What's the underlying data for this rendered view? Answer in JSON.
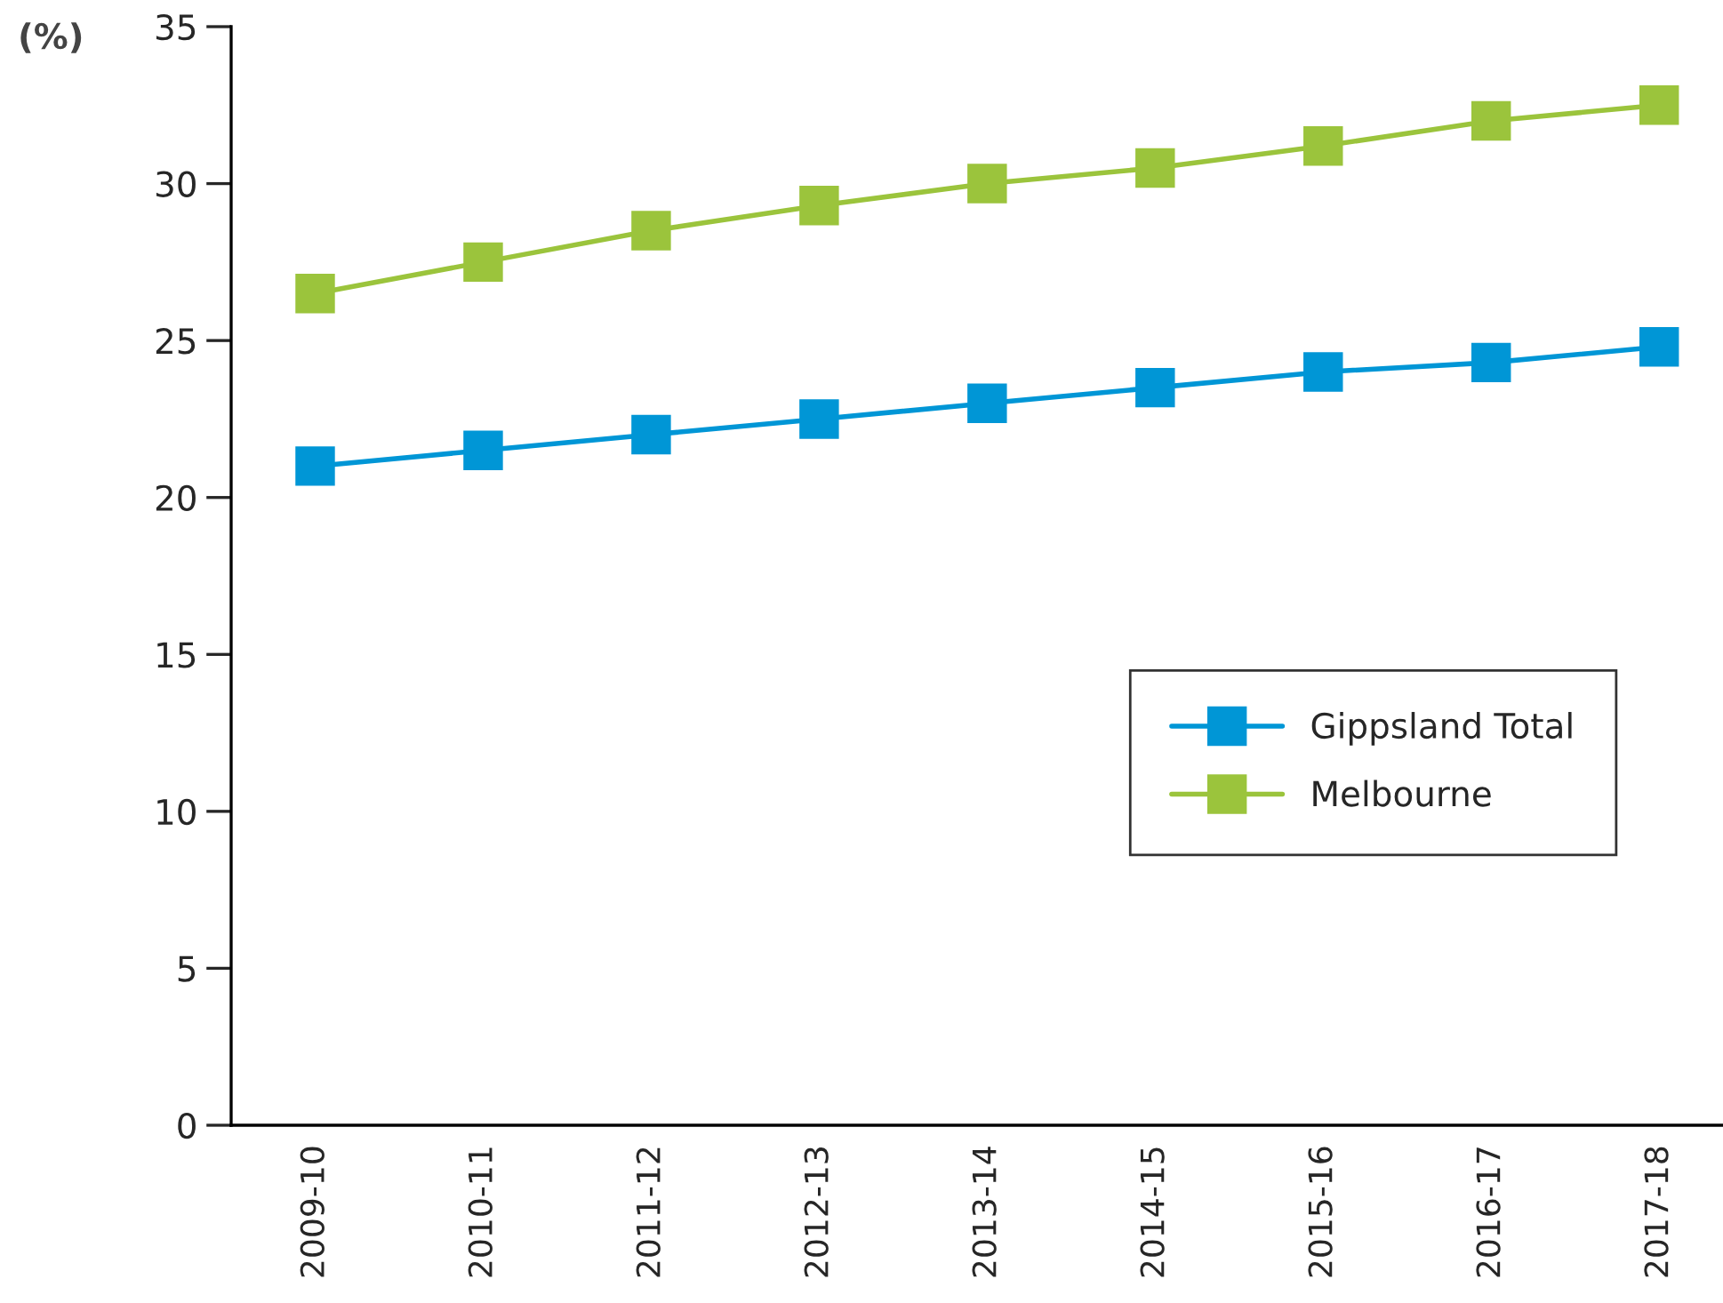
{
  "chart_data": {
    "type": "line",
    "ylabel": "(%)",
    "categories": [
      "2009-10",
      "2010-11",
      "2011-12",
      "2012-13",
      "2013-14",
      "2014-15",
      "2015-16",
      "2016-17",
      "2017-18"
    ],
    "series": [
      {
        "name": "Gippsland Total",
        "color": "#0096d6",
        "values": [
          21.0,
          21.5,
          22.0,
          22.5,
          23.0,
          23.5,
          24.0,
          24.3,
          24.8
        ]
      },
      {
        "name": "Melbourne",
        "color": "#9bc43c",
        "values": [
          26.5,
          27.5,
          28.5,
          29.3,
          30.0,
          30.5,
          31.2,
          32.0,
          32.5
        ]
      }
    ],
    "ylim": [
      0,
      35
    ],
    "yticks": [
      0,
      5,
      10,
      15,
      20,
      25,
      30,
      35
    ],
    "grid": false,
    "legend": "right",
    "marker": "square",
    "line_style": "solid"
  }
}
